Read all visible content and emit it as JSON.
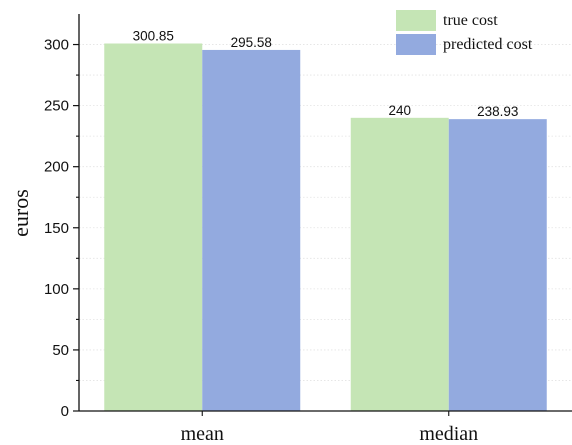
{
  "chart_data": {
    "type": "bar",
    "title": "",
    "xlabel": "",
    "ylabel": "euros",
    "categories": [
      "mean",
      "median"
    ],
    "series": [
      {
        "name": "true cost",
        "values": [
          300.85,
          240
        ],
        "labels": [
          "300.85",
          "240"
        ],
        "color": "#c5e5b5"
      },
      {
        "name": "predicted cost",
        "values": [
          295.58,
          238.93
        ],
        "labels": [
          "295.58",
          "238.93"
        ],
        "color": "#93aadf"
      }
    ],
    "ylim": [
      0,
      325
    ],
    "yticks": [
      0,
      50,
      100,
      150,
      200,
      250,
      300
    ],
    "ytick_labels": [
      "0",
      "50",
      "100",
      "150",
      "200",
      "250",
      "300"
    ],
    "grid": true,
    "legend_position": "top-right"
  }
}
